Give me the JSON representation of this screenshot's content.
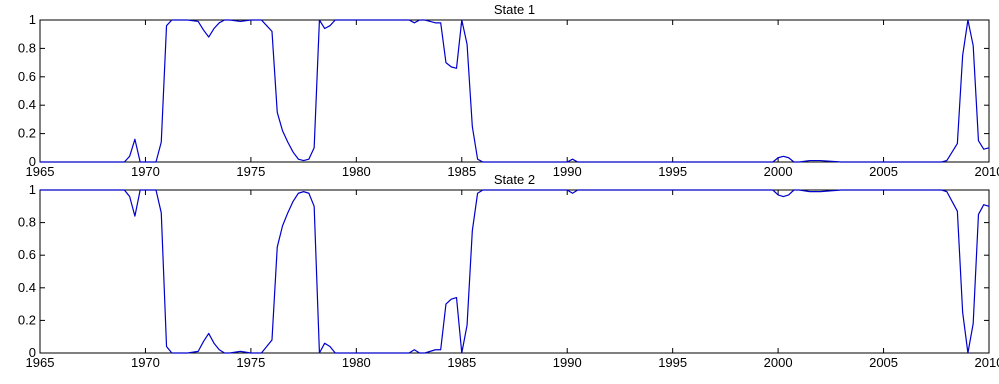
{
  "chart_data": [
    {
      "type": "line",
      "title": "State 1",
      "xlabel": "",
      "ylabel": "",
      "xlim": [
        1965,
        2010
      ],
      "ylim": [
        0,
        1
      ],
      "xticks": [
        1965,
        1970,
        1975,
        1980,
        1985,
        1990,
        1995,
        2000,
        2005,
        2010
      ],
      "xtick_labels": [
        "1965",
        "1970",
        "1975",
        "1980",
        "1985",
        "1990",
        "1995",
        "2000",
        "2005",
        "2010"
      ],
      "yticks": [
        0,
        0.2,
        0.4,
        0.6,
        0.8,
        1
      ],
      "ytick_labels": [
        "0",
        "0.2",
        "0.4",
        "0.6",
        "0.8",
        "1"
      ],
      "grid": false,
      "series": [
        {
          "color": "#0000cc",
          "x": [
            1965.0,
            1966.0,
            1967.0,
            1968.0,
            1969.0,
            1969.25,
            1969.5,
            1969.75,
            1970.0,
            1970.25,
            1970.5,
            1970.75,
            1971.0,
            1971.25,
            1971.5,
            1972.0,
            1972.5,
            1972.75,
            1973.0,
            1973.25,
            1973.5,
            1973.75,
            1974.0,
            1974.5,
            1975.0,
            1975.5,
            1975.75,
            1976.0,
            1976.25,
            1976.5,
            1976.75,
            1977.0,
            1977.25,
            1977.5,
            1977.75,
            1978.0,
            1978.25,
            1978.5,
            1978.75,
            1979.0,
            1979.5,
            1980.0,
            1981.0,
            1982.0,
            1982.5,
            1982.75,
            1983.0,
            1983.25,
            1983.5,
            1983.75,
            1984.0,
            1984.25,
            1984.5,
            1984.75,
            1985.0,
            1985.25,
            1985.5,
            1985.75,
            1986.0,
            1987.0,
            1988.0,
            1989.0,
            1990.0,
            1990.25,
            1990.5,
            1991.0,
            1995.0,
            1999.75,
            2000.0,
            2000.25,
            2000.5,
            2000.75,
            2001.0,
            2001.5,
            2002.0,
            2003.0,
            2005.0,
            2007.0,
            2007.75,
            2008.0,
            2008.25,
            2008.5,
            2008.75,
            2009.0,
            2009.25,
            2009.5,
            2009.75,
            2010.0
          ],
          "y": [
            0.0,
            0.0,
            0.0,
            0.0,
            0.0,
            0.04,
            0.16,
            0.0,
            0.0,
            0.0,
            0.0,
            0.14,
            0.96,
            1.0,
            1.0,
            1.0,
            0.99,
            0.93,
            0.88,
            0.94,
            0.98,
            1.0,
            1.0,
            0.99,
            1.0,
            1.0,
            0.96,
            0.92,
            0.35,
            0.22,
            0.14,
            0.07,
            0.02,
            0.01,
            0.02,
            0.1,
            1.0,
            0.94,
            0.96,
            1.0,
            1.0,
            1.0,
            1.0,
            1.0,
            1.0,
            0.98,
            1.0,
            1.0,
            0.99,
            0.98,
            0.98,
            0.7,
            0.67,
            0.66,
            1.0,
            0.83,
            0.25,
            0.02,
            0.0,
            0.0,
            0.0,
            0.0,
            0.0,
            0.02,
            0.0,
            0.0,
            0.0,
            0.0,
            0.03,
            0.04,
            0.03,
            0.0,
            0.0,
            0.01,
            0.01,
            0.0,
            0.0,
            0.0,
            0.0,
            0.01,
            0.07,
            0.13,
            0.75,
            1.0,
            0.82,
            0.15,
            0.09,
            0.1
          ]
        }
      ]
    },
    {
      "type": "line",
      "title": "State 2",
      "xlabel": "",
      "ylabel": "",
      "xlim": [
        1965,
        2010
      ],
      "ylim": [
        0,
        1
      ],
      "xticks": [
        1965,
        1970,
        1975,
        1980,
        1985,
        1990,
        1995,
        2000,
        2005,
        2010
      ],
      "xtick_labels": [
        "1965",
        "1970",
        "1975",
        "1980",
        "1985",
        "1990",
        "1995",
        "2000",
        "2005",
        "2010"
      ],
      "yticks": [
        0,
        0.2,
        0.4,
        0.6,
        0.8,
        1
      ],
      "ytick_labels": [
        "0",
        "0.2",
        "0.4",
        "0.6",
        "0.8",
        "1"
      ],
      "grid": false,
      "series": [
        {
          "color": "#0000cc",
          "x": [
            1965.0,
            1966.0,
            1967.0,
            1968.0,
            1969.0,
            1969.25,
            1969.5,
            1969.75,
            1970.0,
            1970.25,
            1970.5,
            1970.75,
            1971.0,
            1971.25,
            1971.5,
            1972.0,
            1972.5,
            1972.75,
            1973.0,
            1973.25,
            1973.5,
            1973.75,
            1974.0,
            1974.5,
            1975.0,
            1975.5,
            1975.75,
            1976.0,
            1976.25,
            1976.5,
            1976.75,
            1977.0,
            1977.25,
            1977.5,
            1977.75,
            1978.0,
            1978.25,
            1978.5,
            1978.75,
            1979.0,
            1979.5,
            1980.0,
            1981.0,
            1982.0,
            1982.5,
            1982.75,
            1983.0,
            1983.25,
            1983.5,
            1983.75,
            1984.0,
            1984.25,
            1984.5,
            1984.75,
            1985.0,
            1985.25,
            1985.5,
            1985.75,
            1986.0,
            1987.0,
            1988.0,
            1989.0,
            1990.0,
            1990.25,
            1990.5,
            1991.0,
            1995.0,
            1999.75,
            2000.0,
            2000.25,
            2000.5,
            2000.75,
            2001.0,
            2001.5,
            2002.0,
            2003.0,
            2005.0,
            2007.0,
            2007.75,
            2008.0,
            2008.25,
            2008.5,
            2008.75,
            2009.0,
            2009.25,
            2009.5,
            2009.75,
            2010.0
          ],
          "y": [
            1.0,
            1.0,
            1.0,
            1.0,
            1.0,
            0.96,
            0.84,
            1.0,
            1.0,
            1.0,
            1.0,
            0.86,
            0.04,
            0.0,
            0.0,
            0.0,
            0.01,
            0.07,
            0.12,
            0.06,
            0.02,
            0.0,
            0.0,
            0.01,
            0.0,
            0.0,
            0.04,
            0.08,
            0.65,
            0.78,
            0.86,
            0.93,
            0.98,
            0.99,
            0.98,
            0.9,
            0.0,
            0.06,
            0.04,
            0.0,
            0.0,
            0.0,
            0.0,
            0.0,
            0.0,
            0.02,
            0.0,
            0.0,
            0.01,
            0.02,
            0.02,
            0.3,
            0.33,
            0.34,
            0.0,
            0.17,
            0.75,
            0.98,
            1.0,
            1.0,
            1.0,
            1.0,
            1.0,
            0.98,
            1.0,
            1.0,
            1.0,
            1.0,
            0.97,
            0.96,
            0.97,
            1.0,
            1.0,
            0.99,
            0.99,
            1.0,
            1.0,
            1.0,
            1.0,
            0.99,
            0.93,
            0.87,
            0.25,
            0.0,
            0.18,
            0.85,
            0.91,
            0.9
          ]
        }
      ]
    }
  ]
}
